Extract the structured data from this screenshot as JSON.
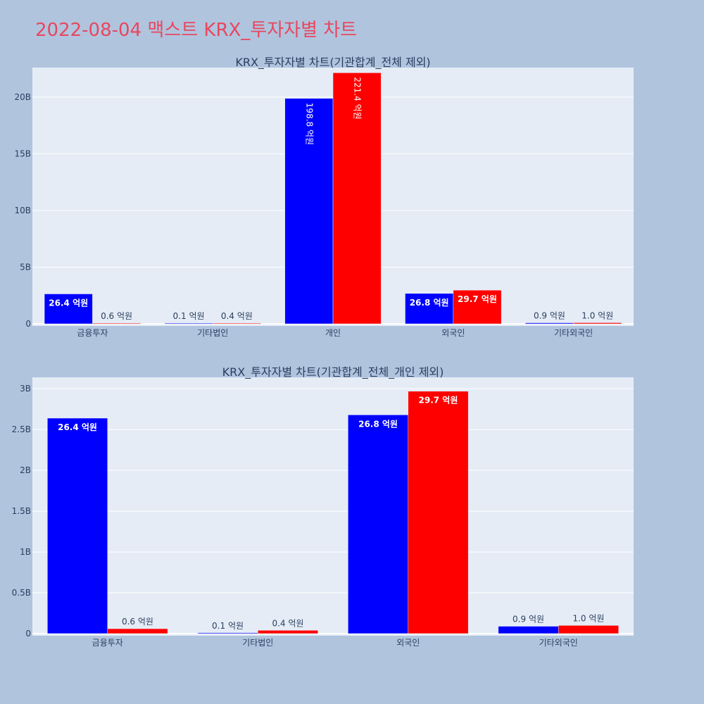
{
  "page_title": "2022-08-04 맥스트 KRX_투자자별 차트",
  "colors": {
    "page_bg": "#b0c4de",
    "plot_bg": "#e5ecf6",
    "title": "#e8475f",
    "buy": "#0000ff",
    "sell": "#ff0000"
  },
  "chart_data": [
    {
      "type": "bar",
      "title": "KRX_투자자별 차트(기관합계_전체 제외)",
      "categories": [
        "금융투자",
        "기타법인",
        "개인",
        "외국인",
        "기타외국인"
      ],
      "series": [
        {
          "color": "#0000ff",
          "values": [
            2640000000,
            10000000,
            19880000000,
            2680000000,
            90000000
          ],
          "labels": [
            "26.4 억원",
            "0.1 억원",
            "198.8 억원",
            "26.8 억원",
            "0.9 억원"
          ]
        },
        {
          "color": "#ff0000",
          "values": [
            60000000,
            40000000,
            22140000000,
            2970000000,
            100000000
          ],
          "labels": [
            "0.6 억원",
            "0.4 억원",
            "221.4 억원",
            "29.7 억원",
            "1.0 억원"
          ]
        }
      ],
      "yticks": [
        0,
        5000000000,
        10000000000,
        15000000000,
        20000000000
      ],
      "ytick_labels": [
        "0",
        "5B",
        "10B",
        "15B",
        "20B"
      ],
      "ylim": [
        0,
        22600000000
      ],
      "grid": true
    },
    {
      "type": "bar",
      "title": "KRX_투자자별 차트(기관합계_전체_개인 제외)",
      "categories": [
        "금융투자",
        "기타법인",
        "외국인",
        "기타외국인"
      ],
      "series": [
        {
          "color": "#0000ff",
          "values": [
            2640000000,
            10000000,
            2680000000,
            90000000
          ],
          "labels": [
            "26.4 억원",
            "0.1 억원",
            "26.8 억원",
            "0.9 억원"
          ]
        },
        {
          "color": "#ff0000",
          "values": [
            60000000,
            40000000,
            2970000000,
            100000000
          ],
          "labels": [
            "0.6 억원",
            "0.4 억원",
            "29.7 억원",
            "1.0 억원"
          ]
        }
      ],
      "yticks": [
        0,
        500000000,
        1000000000,
        1500000000,
        2000000000,
        2500000000,
        3000000000
      ],
      "ytick_labels": [
        "0",
        "0.5B",
        "1B",
        "1.5B",
        "2B",
        "2.5B",
        "3B"
      ],
      "ylim": [
        0,
        3140000000
      ],
      "grid": true
    }
  ]
}
